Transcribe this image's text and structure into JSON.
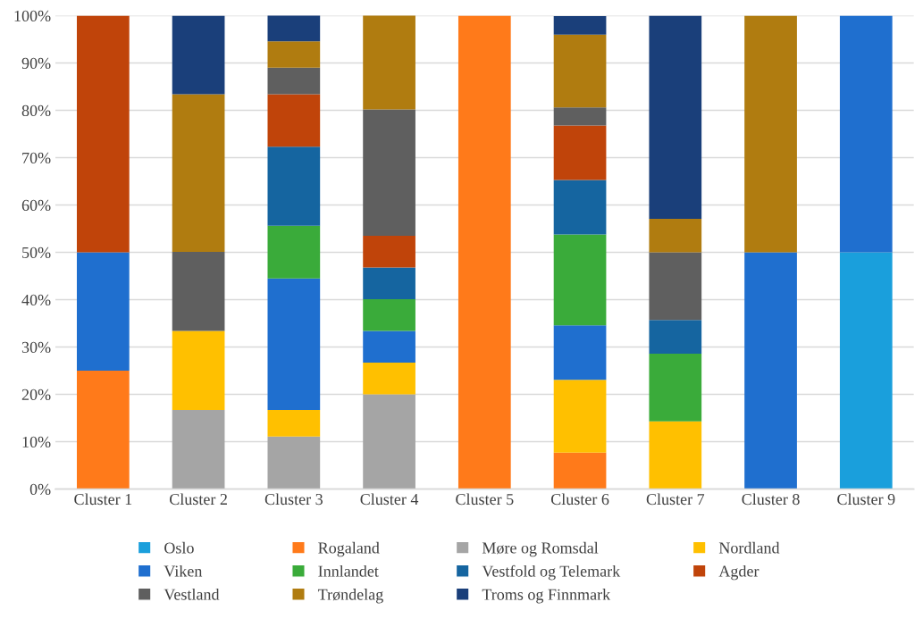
{
  "chart_data": {
    "type": "bar",
    "stacked": true,
    "categories": [
      "Cluster 1",
      "Cluster 2",
      "Cluster 3",
      "Cluster 4",
      "Cluster 5",
      "Cluster 6",
      "Cluster 7",
      "Cluster 8",
      "Cluster 9"
    ],
    "series": [
      {
        "name": "Oslo",
        "color": "#1a9fdc",
        "values": [
          0,
          0,
          0,
          0,
          0,
          0,
          0,
          0,
          50
        ]
      },
      {
        "name": "Rogaland",
        "color": "#ff7a1a",
        "values": [
          25,
          0,
          0,
          0,
          100,
          7.7,
          0,
          0,
          0
        ]
      },
      {
        "name": "Møre og Romsdal",
        "color": "#a5a5a5",
        "values": [
          0,
          16.7,
          11.1,
          20,
          0,
          0,
          0,
          0,
          0
        ]
      },
      {
        "name": "Nordland",
        "color": "#ffc000",
        "values": [
          0,
          16.7,
          5.6,
          6.7,
          0,
          15.4,
          14.3,
          0,
          0
        ]
      },
      {
        "name": "Viken",
        "color": "#1f6fcf",
        "values": [
          25,
          0,
          27.8,
          6.7,
          0,
          11.5,
          0,
          50,
          50
        ]
      },
      {
        "name": "Innlandet",
        "color": "#3aab3a",
        "values": [
          0,
          0,
          11.1,
          6.7,
          0,
          19.2,
          14.3,
          0,
          0
        ]
      },
      {
        "name": "Vestfold og Telemark",
        "color": "#1565a0",
        "values": [
          0,
          0,
          16.7,
          6.7,
          0,
          11.5,
          7.1,
          0,
          0
        ]
      },
      {
        "name": "Agder",
        "color": "#c0440a",
        "values": [
          50,
          0,
          11.1,
          6.7,
          0,
          11.5,
          0,
          0,
          0
        ]
      },
      {
        "name": "Vestland",
        "color": "#5f5f5f",
        "values": [
          0,
          16.7,
          5.6,
          26.7,
          0,
          3.8,
          14.3,
          0,
          0
        ]
      },
      {
        "name": "Trøndelag",
        "color": "#b07c10",
        "values": [
          0,
          33.3,
          5.6,
          20,
          0,
          15.4,
          7.1,
          50,
          0
        ]
      },
      {
        "name": "Troms og Finnmark",
        "color": "#1a3f7a",
        "values": [
          0,
          16.6,
          5.5,
          0,
          0,
          3.9,
          42.9,
          0,
          0
        ]
      }
    ],
    "ylim": [
      0,
      100
    ],
    "yticks": [
      {
        "value": 0,
        "label": "0%"
      },
      {
        "value": 10,
        "label": "10%"
      },
      {
        "value": 20,
        "label": "20%"
      },
      {
        "value": 30,
        "label": "30%"
      },
      {
        "value": 40,
        "label": "40%"
      },
      {
        "value": 50,
        "label": "50%"
      },
      {
        "value": 60,
        "label": "60%"
      },
      {
        "value": 70,
        "label": "70%"
      },
      {
        "value": 80,
        "label": "80%"
      },
      {
        "value": 90,
        "label": "90%"
      },
      {
        "value": 100,
        "label": "100%"
      }
    ],
    "grid": "y",
    "legend": "bottom"
  }
}
